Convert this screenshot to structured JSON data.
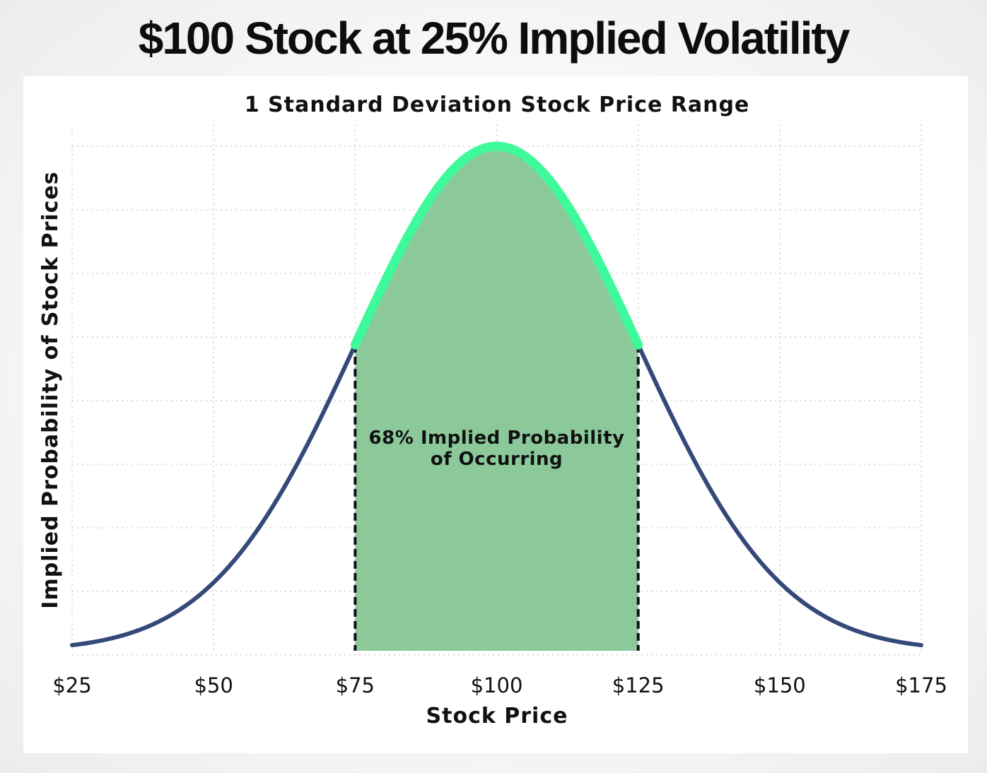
{
  "page": {
    "title": "$100 Stock at 25% Implied Volatility"
  },
  "chart_data": {
    "type": "area",
    "title": "1 Standard Deviation Stock Price Range",
    "xlabel": "Stock Price",
    "ylabel": "Implied Probability of Stock Prices",
    "x_ticks": [
      25,
      50,
      75,
      100,
      125,
      150,
      175
    ],
    "x_tick_labels": [
      "$25",
      "$50",
      "$75",
      "$100",
      "$125",
      "$150",
      "$175"
    ],
    "xlim": [
      25,
      175
    ],
    "distribution": {
      "kind": "normal",
      "mean": 100,
      "std_dev": 25
    },
    "shaded_range": [
      75,
      125
    ],
    "annotation": {
      "lines": [
        "68% Implied Probability",
        "of Occurring"
      ],
      "x": 100
    },
    "grid": true,
    "y_tick_labels_shown": false,
    "colors": {
      "curve": "#34497a",
      "highlight_curve": "#3ffa9b",
      "fill": "#8bc99b",
      "bounds": "#111111",
      "grid": "#cfcfcf"
    }
  }
}
